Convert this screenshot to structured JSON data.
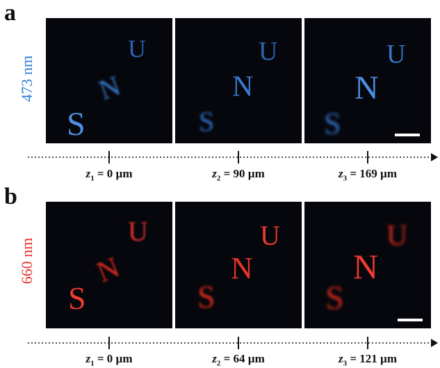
{
  "panels": [
    {
      "letter": "a",
      "wavelength": "473 nm",
      "color": "#2f7fd6",
      "planes": [
        {
          "var": "z",
          "sub": "1",
          "value": "= 0 µm"
        },
        {
          "var": "z",
          "sub": "2",
          "value": "= 90 µm"
        },
        {
          "var": "z",
          "sub": "3",
          "value": "= 169 µm"
        }
      ]
    },
    {
      "letter": "b",
      "wavelength": "660 nm",
      "color": "#e8302a",
      "planes": [
        {
          "var": "z",
          "sub": "1",
          "value": "= 0 µm"
        },
        {
          "var": "z",
          "sub": "2",
          "value": "= 64 µm"
        },
        {
          "var": "z",
          "sub": "3",
          "value": "= 121 µm"
        }
      ]
    }
  ],
  "letters_depicted": [
    "S",
    "N",
    "U"
  ]
}
